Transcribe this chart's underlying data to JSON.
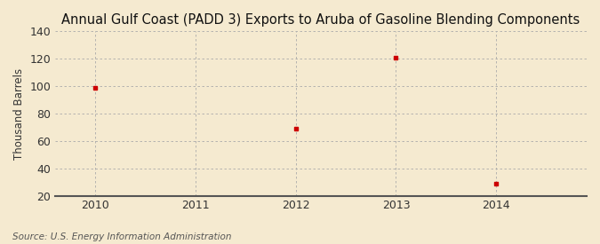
{
  "title": "Annual Gulf Coast (PADD 3) Exports to Aruba of Gasoline Blending Components",
  "ylabel": "Thousand Barrels",
  "source": "Source: U.S. Energy Information Administration",
  "x_values": [
    2010,
    2012,
    2013,
    2014
  ],
  "y_values": [
    99,
    69,
    121,
    29
  ],
  "xlim": [
    2009.6,
    2014.9
  ],
  "ylim": [
    20,
    140
  ],
  "yticks": [
    20,
    40,
    60,
    80,
    100,
    120,
    140
  ],
  "xticks": [
    2010,
    2011,
    2012,
    2013,
    2014
  ],
  "marker_color": "#cc0000",
  "marker": "s",
  "marker_size": 3.5,
  "background_color": "#f5ead0",
  "grid_color": "#aaaaaa",
  "title_fontsize": 10.5,
  "label_fontsize": 8.5,
  "tick_fontsize": 9,
  "source_fontsize": 7.5
}
